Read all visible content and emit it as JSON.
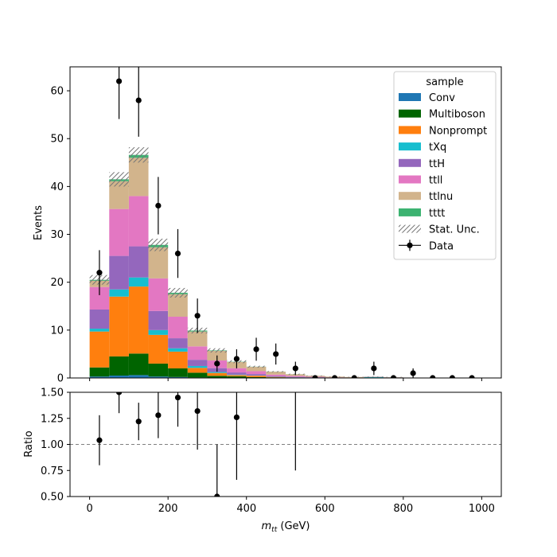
{
  "chart_data": {
    "type": "bar",
    "stacked": true,
    "xlabel": "m_tt (GeV)",
    "xlabel_main": "m",
    "xlabel_sub": "tt",
    "xlabel_unit": " (GeV)",
    "x_ticks": [
      "0",
      "200",
      "400",
      "600",
      "800",
      "1000"
    ],
    "bin_edges": [
      0,
      50,
      100,
      150,
      200,
      250,
      300,
      350,
      400,
      450,
      500,
      550,
      600,
      650,
      700,
      750,
      800,
      850,
      900,
      950,
      1000
    ],
    "top_panel": {
      "ylabel": "Events",
      "ylim": [
        0,
        65
      ],
      "y_ticks": [
        "0",
        "10",
        "20",
        "30",
        "40",
        "50",
        "60"
      ]
    },
    "ratio_panel": {
      "ylabel": "Ratio",
      "ylim": [
        0.5,
        1.5
      ],
      "y_ticks": [
        "0.50",
        "0.75",
        "1.00",
        "1.25",
        "1.50"
      ],
      "reference_line": 1.0
    },
    "legend": {
      "title": "sample",
      "placement": "top-right",
      "unc_label": "Stat. Unc.",
      "data_label": "Data"
    },
    "series": [
      {
        "name": "Conv",
        "color": "#1f77b4",
        "values": [
          0.3,
          0.5,
          0.6,
          0.3,
          0.2,
          0.1,
          0.05,
          0.05,
          0.02,
          0.02,
          0,
          0,
          0,
          0,
          0,
          0,
          0,
          0,
          0,
          0
        ]
      },
      {
        "name": "Multiboson",
        "color": "#006400",
        "values": [
          1.9,
          4.0,
          4.5,
          2.7,
          1.8,
          1.0,
          0.4,
          0.3,
          0.15,
          0.1,
          0.05,
          0.05,
          0.02,
          0.02,
          0.1,
          0.05,
          0,
          0,
          0,
          0
        ]
      },
      {
        "name": "Nonprompt",
        "color": "#ff7f0e",
        "values": [
          7.5,
          12.5,
          14.0,
          6.0,
          3.5,
          1.0,
          0.6,
          0.25,
          0.3,
          0.1,
          0.05,
          0.03,
          0.02,
          0.02,
          0,
          0,
          0,
          0,
          0,
          0
        ]
      },
      {
        "name": "tXq",
        "color": "#17becf",
        "values": [
          0.6,
          1.5,
          1.9,
          1.0,
          0.7,
          0.4,
          0.2,
          0.1,
          0.05,
          0.03,
          0.03,
          0.02,
          0.01,
          0.01,
          0.1,
          0.05,
          0,
          0,
          0,
          0
        ]
      },
      {
        "name": "ttH",
        "color": "#9467bd",
        "values": [
          4.0,
          7.0,
          6.5,
          4.0,
          2.1,
          1.3,
          0.8,
          0.45,
          0.3,
          0.15,
          0.1,
          0.05,
          0.03,
          0.02,
          0.02,
          0.01,
          0,
          0,
          0,
          0
        ]
      },
      {
        "name": "ttll",
        "color": "#e377c2",
        "values": [
          4.7,
          9.8,
          10.5,
          6.8,
          4.5,
          2.8,
          1.6,
          0.9,
          0.6,
          0.3,
          0.2,
          0.1,
          0.05,
          0.03,
          0.02,
          0.02,
          0,
          0,
          0,
          0
        ]
      },
      {
        "name": "ttlnu",
        "color": "#d2b48c",
        "values": [
          1.3,
          5.8,
          8.0,
          6.5,
          4.7,
          3.1,
          2.0,
          1.3,
          0.9,
          0.6,
          0.35,
          0.2,
          0.15,
          0.1,
          0.05,
          0.05,
          0,
          0,
          0,
          0
        ]
      },
      {
        "name": "tttt",
        "color": "#3cb371",
        "values": [
          0.2,
          0.4,
          0.6,
          0.5,
          0.3,
          0.2,
          0.1,
          0.05,
          0.03,
          0.02,
          0.01,
          0.01,
          0,
          0,
          0,
          0,
          0,
          0,
          0,
          0
        ]
      }
    ],
    "stat_unc": [
      1.0,
      1.5,
      1.6,
      1.3,
      1.0,
      0.6,
      0.45,
      0.3,
      0.2,
      0.12,
      0.1,
      0.07,
      0.05,
      0.04,
      0.05,
      0.04,
      0,
      0,
      0,
      0
    ],
    "data": {
      "x": [
        25,
        75,
        125,
        175,
        225,
        275,
        325,
        375,
        425,
        475,
        525,
        575,
        625,
        675,
        725,
        775,
        825,
        875,
        925,
        975
      ],
      "y": [
        22,
        62,
        58,
        36,
        26,
        13,
        3,
        4,
        6,
        5,
        2,
        0,
        0,
        0,
        2,
        0,
        1,
        0,
        0,
        0
      ],
      "err_low": [
        4.7,
        7.9,
        7.6,
        6.0,
        5.1,
        3.6,
        1.7,
        2.0,
        2.4,
        2.2,
        1.4,
        0,
        0,
        0,
        1.4,
        0,
        1.0,
        0,
        0,
        0
      ],
      "err_high": [
        4.7,
        7.9,
        7.6,
        6.0,
        5.1,
        3.6,
        1.7,
        2.0,
        2.4,
        2.2,
        1.4,
        0,
        0,
        0,
        1.4,
        0,
        1.0,
        0,
        0,
        0
      ]
    },
    "ratio": {
      "x": [
        25,
        75,
        125,
        175,
        225,
        275,
        325,
        375,
        525
      ],
      "y": [
        1.04,
        1.5,
        1.22,
        1.28,
        1.45,
        1.32,
        0.5,
        1.26,
        1.6
      ],
      "err": [
        0.24,
        0.2,
        0.18,
        0.22,
        0.28,
        0.37,
        0.5,
        0.6,
        0.85
      ]
    }
  }
}
